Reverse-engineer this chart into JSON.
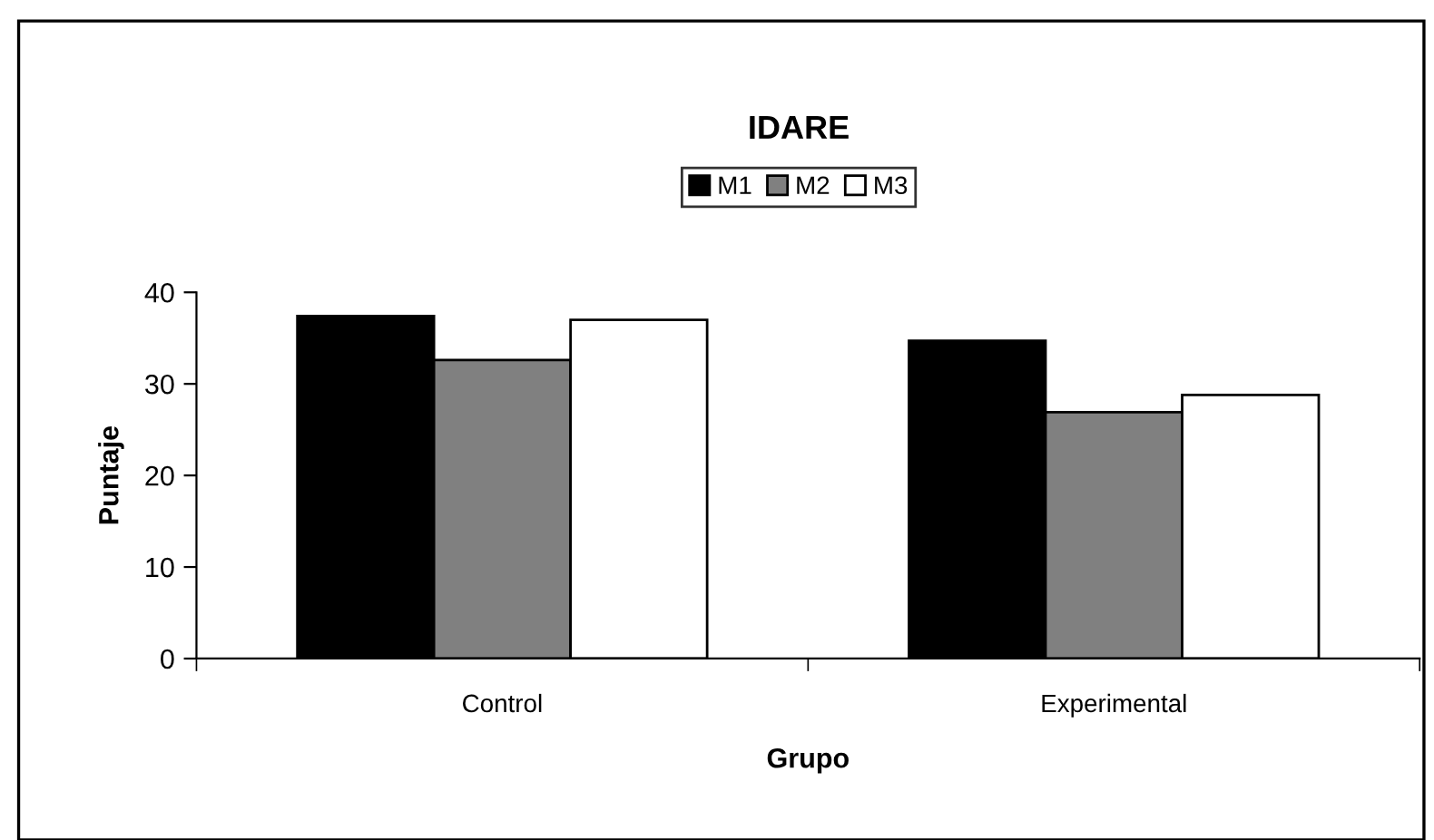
{
  "chart_data": {
    "type": "bar",
    "title": "IDARE",
    "xlabel": "Grupo",
    "ylabel": "Puntaje",
    "categories": [
      "Control",
      "Experimental"
    ],
    "series": [
      {
        "name": "M1",
        "color": "#000000",
        "values": [
          37.4,
          34.7
        ]
      },
      {
        "name": "M2",
        "color": "#808080",
        "values": [
          32.6,
          26.9
        ]
      },
      {
        "name": "M3",
        "color": "#ffffff",
        "values": [
          37.0,
          28.8
        ]
      }
    ],
    "ylim": [
      0,
      40
    ],
    "yticks": [
      0,
      10,
      20,
      30,
      40
    ],
    "grid": false,
    "legend": "top"
  }
}
